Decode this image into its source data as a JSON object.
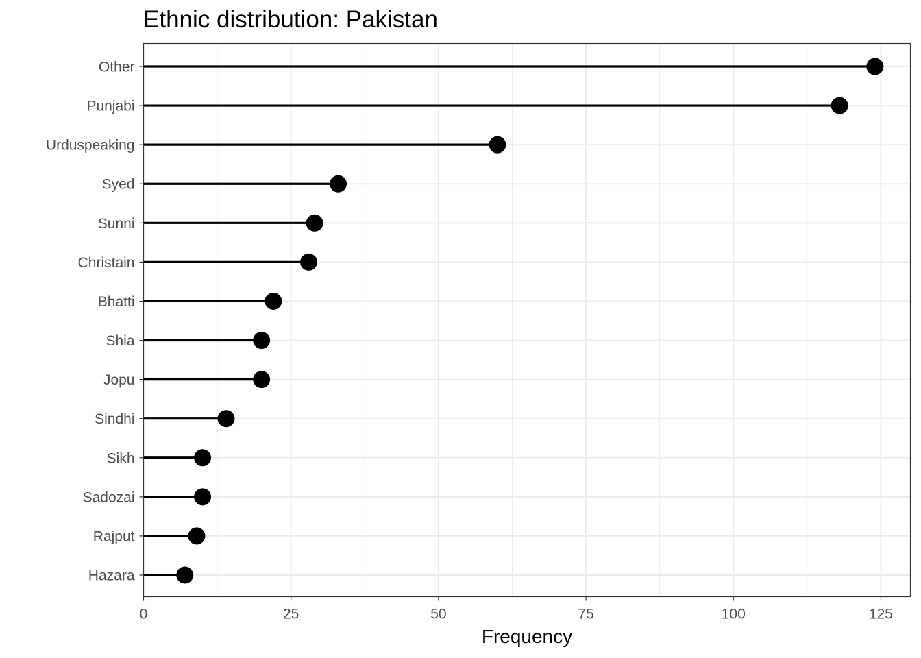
{
  "chart_data": {
    "type": "lollipop",
    "title": "Ethnic distribution: Pakistan",
    "xlabel": "Frequency",
    "ylabel": "",
    "xlim": [
      0,
      130
    ],
    "x_ticks": [
      0,
      25,
      50,
      75,
      100,
      125
    ],
    "x_tick_labels": [
      "0",
      "25",
      "50",
      "75",
      "100",
      "125"
    ],
    "categories": [
      "Other",
      "Punjabi",
      "Urduspeaking",
      "Syed",
      "Sunni",
      "Christain",
      "Bhatti",
      "Shia",
      "Jopu",
      "Sindhi",
      "Sikh",
      "Sadozai",
      "Rajput",
      "Hazara"
    ],
    "values": [
      124,
      118,
      60,
      33,
      29,
      28,
      22,
      20,
      20,
      14,
      10,
      10,
      9,
      7
    ],
    "grid": true,
    "colors": {
      "marker": "#000000",
      "grid": "#ebebeb",
      "panel_border": "#333333",
      "tick_label": "#4d4d4d"
    }
  }
}
